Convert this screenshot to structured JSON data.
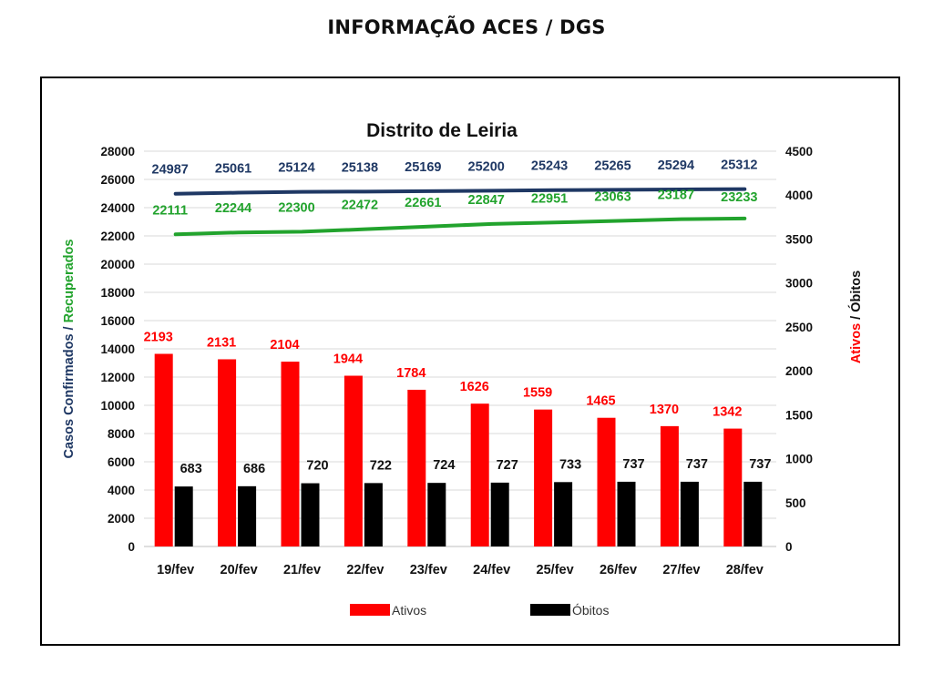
{
  "page": {
    "header": "INFORMAÇÃO ACES / DGS"
  },
  "chart_data": {
    "type": "bar",
    "title": "Distrito de Leiria",
    "categories": [
      "19/fev",
      "20/fev",
      "21/fev",
      "22/fev",
      "23/fev",
      "24/fev",
      "25/fev",
      "26/fev",
      "27/fev",
      "28/fev"
    ],
    "y_left": {
      "label_part1": "Casos Confirmados",
      "label_separator": " / ",
      "label_part2": "Recuperados",
      "label_part1_color": "#1f3864",
      "label_part2_color": "#22a32d",
      "ylim": [
        0,
        28000
      ],
      "ticks": [
        "0",
        "2000",
        "4000",
        "6000",
        "8000",
        "10000",
        "12000",
        "14000",
        "16000",
        "18000",
        "20000",
        "22000",
        "24000",
        "26000",
        "28000"
      ]
    },
    "y_right": {
      "label_part1": "Ativos",
      "label_separator": " / ",
      "label_part2": "Óbitos",
      "label_part1_color": "#ff0000",
      "label_part2_color": "#111111",
      "ylim": [
        0,
        4500
      ],
      "ticks": [
        "0",
        "500",
        "1000",
        "1500",
        "2000",
        "2500",
        "3000",
        "3500",
        "4000",
        "4500"
      ]
    },
    "series": [
      {
        "name": "Casos Confirmados",
        "type": "line",
        "axis": "left",
        "color": "#1f3864",
        "values": [
          24987,
          25061,
          25124,
          25138,
          25169,
          25200,
          25243,
          25265,
          25294,
          25312
        ],
        "labels": [
          "24987",
          "25061",
          "25124",
          "25138",
          "25169",
          "25200",
          "25243",
          "25265",
          "25294",
          "25312"
        ]
      },
      {
        "name": "Recuperados",
        "type": "line",
        "axis": "left",
        "color": "#22a32d",
        "values": [
          22111,
          22244,
          22300,
          22472,
          22661,
          22847,
          22951,
          23063,
          23187,
          23233
        ],
        "labels": [
          "22111",
          "22244",
          "22300",
          "22472",
          "22661",
          "22847",
          "22951",
          "23063",
          "23187",
          "23233"
        ]
      },
      {
        "name": "Ativos",
        "type": "bar",
        "axis": "right",
        "color": "#ff0000",
        "values": [
          2193,
          2131,
          2104,
          1944,
          1784,
          1626,
          1559,
          1465,
          1370,
          1342
        ],
        "labels": [
          "2193",
          "2131",
          "2104",
          "1944",
          "1784",
          "1626",
          "1559",
          "1465",
          "1370",
          "1342"
        ]
      },
      {
        "name": "Óbitos",
        "type": "bar",
        "axis": "right",
        "color": "#000000",
        "values": [
          683,
          686,
          720,
          722,
          724,
          727,
          733,
          737,
          737,
          737
        ],
        "labels": [
          "683",
          "686",
          "720",
          "722",
          "724",
          "727",
          "733",
          "737",
          "737",
          "737"
        ]
      }
    ],
    "legend": {
      "placement": "bottom",
      "items": [
        {
          "name": "Ativos",
          "color": "#ff0000"
        },
        {
          "name": "Óbitos",
          "color": "#000000"
        }
      ]
    },
    "grid": true
  }
}
